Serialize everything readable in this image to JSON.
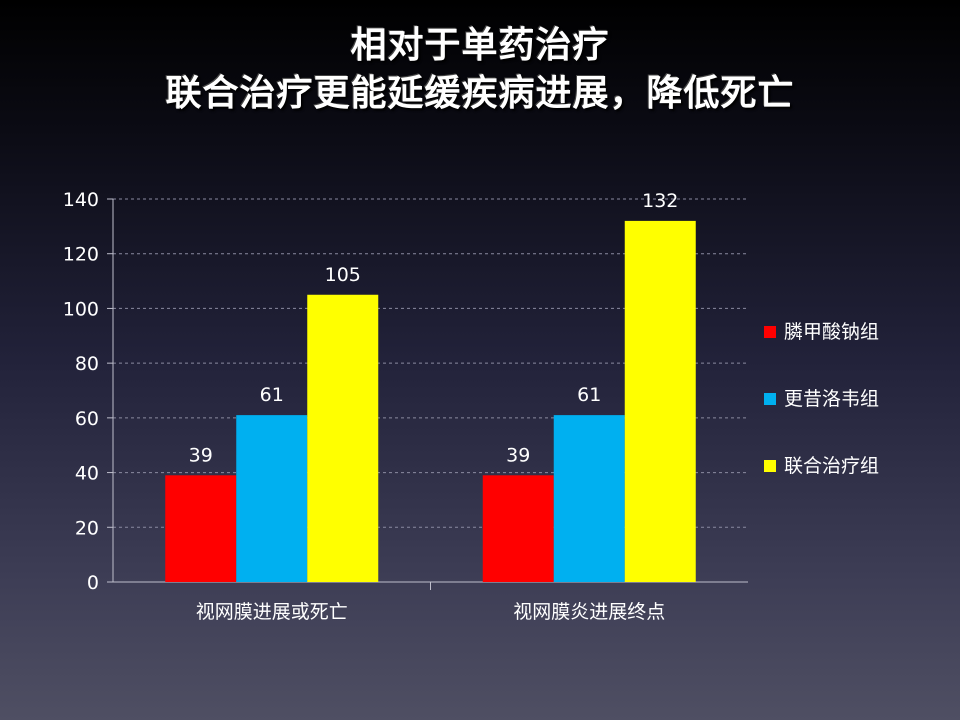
{
  "title": {
    "line1": "相对于单药治疗",
    "line2": "联合治疗更能延缓疾病进展，降低死亡"
  },
  "chart_data": {
    "type": "bar",
    "categories": [
      "视网膜进展或死亡",
      "视网膜炎进展终点"
    ],
    "series": [
      {
        "name": "膦甲酸钠组",
        "values": [
          39,
          39
        ],
        "color": "#ff0000"
      },
      {
        "name": "更昔洛韦组",
        "values": [
          61,
          61
        ],
        "color": "#00b0f0"
      },
      {
        "name": "联合治疗组",
        "values": [
          105,
          132
        ],
        "color": "#ffff00"
      }
    ],
    "y_ticks": [
      "0",
      "20",
      "40",
      "60",
      "80",
      "100",
      "120",
      "140"
    ],
    "ylim": [
      0,
      140
    ],
    "grid": true,
    "legend_position": "right",
    "data_labels": true
  }
}
